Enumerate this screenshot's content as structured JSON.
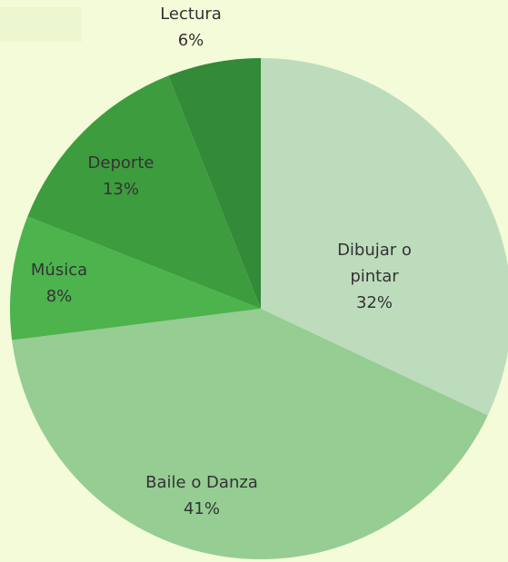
{
  "chart_data": {
    "type": "pie",
    "categories": [
      "Dibujar o pintar",
      "Baile o Danza",
      "Música",
      "Deporte",
      "Lectura"
    ],
    "values": [
      32,
      41,
      8,
      13,
      6
    ],
    "value_labels": [
      "32%",
      "41%",
      "8%",
      "13%",
      "6%"
    ],
    "colors": [
      "#bddcbc",
      "#95cd93",
      "#4db34d",
      "#3d9c3d",
      "#338a38"
    ]
  }
}
